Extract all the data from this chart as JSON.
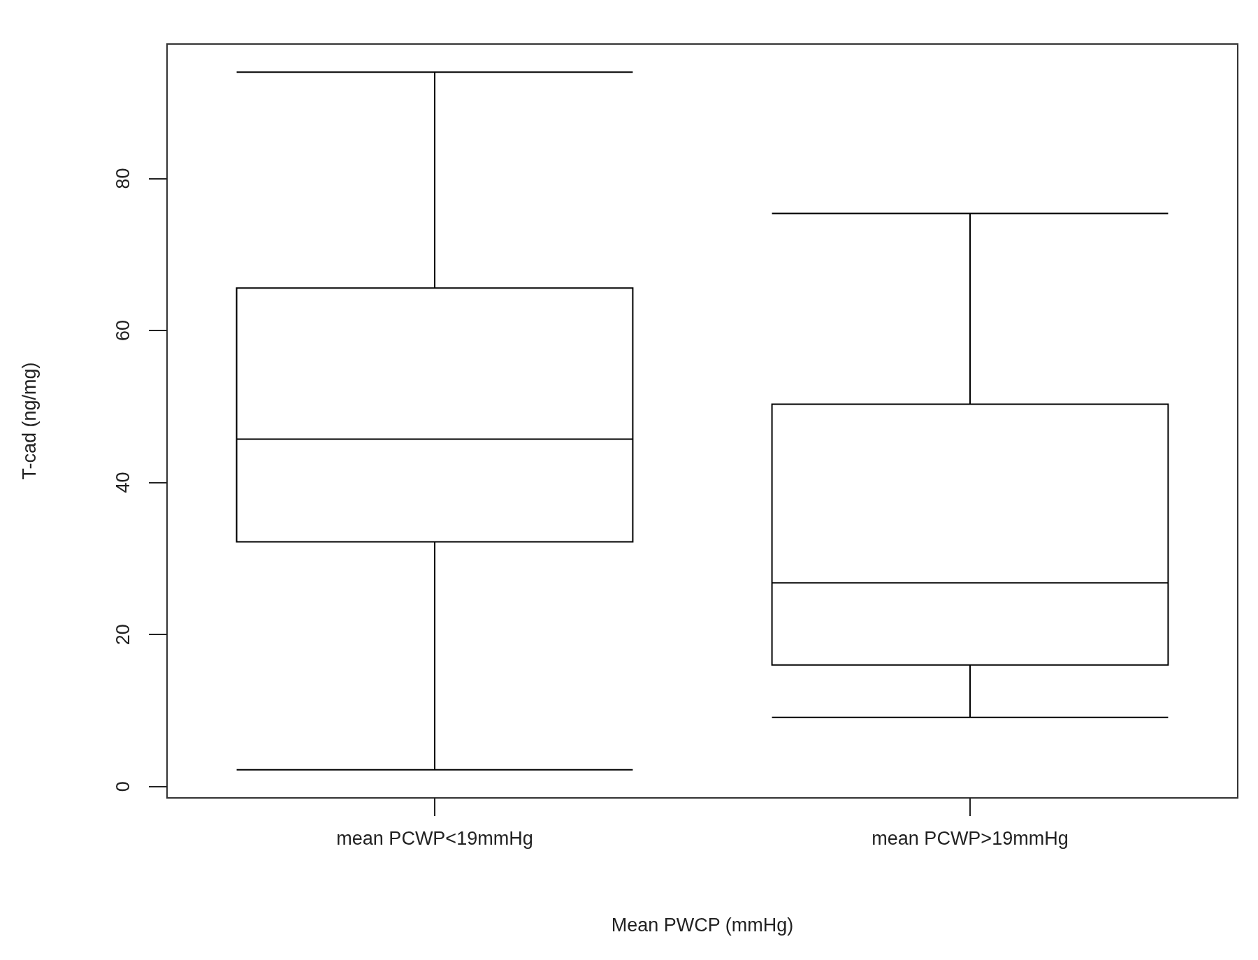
{
  "chart_data": {
    "type": "box",
    "xlabel": "Mean PWCP (mmHg)",
    "ylabel": "T-cad (ng/mg)",
    "categories": [
      "mean PCWP<19mmHg",
      "mean PCWP>19mmHg"
    ],
    "boxes": [
      {
        "low": 2.2,
        "q1": 32.2,
        "median": 45.7,
        "q3": 65.6,
        "high": 94.0
      },
      {
        "low": 9.1,
        "q1": 16.0,
        "median": 26.8,
        "q3": 50.3,
        "high": 75.4
      }
    ],
    "ylim": [
      -1.5,
      97.7
    ],
    "yticks": [
      0,
      20,
      40,
      60,
      80
    ],
    "grid": false,
    "color": "#000000"
  }
}
